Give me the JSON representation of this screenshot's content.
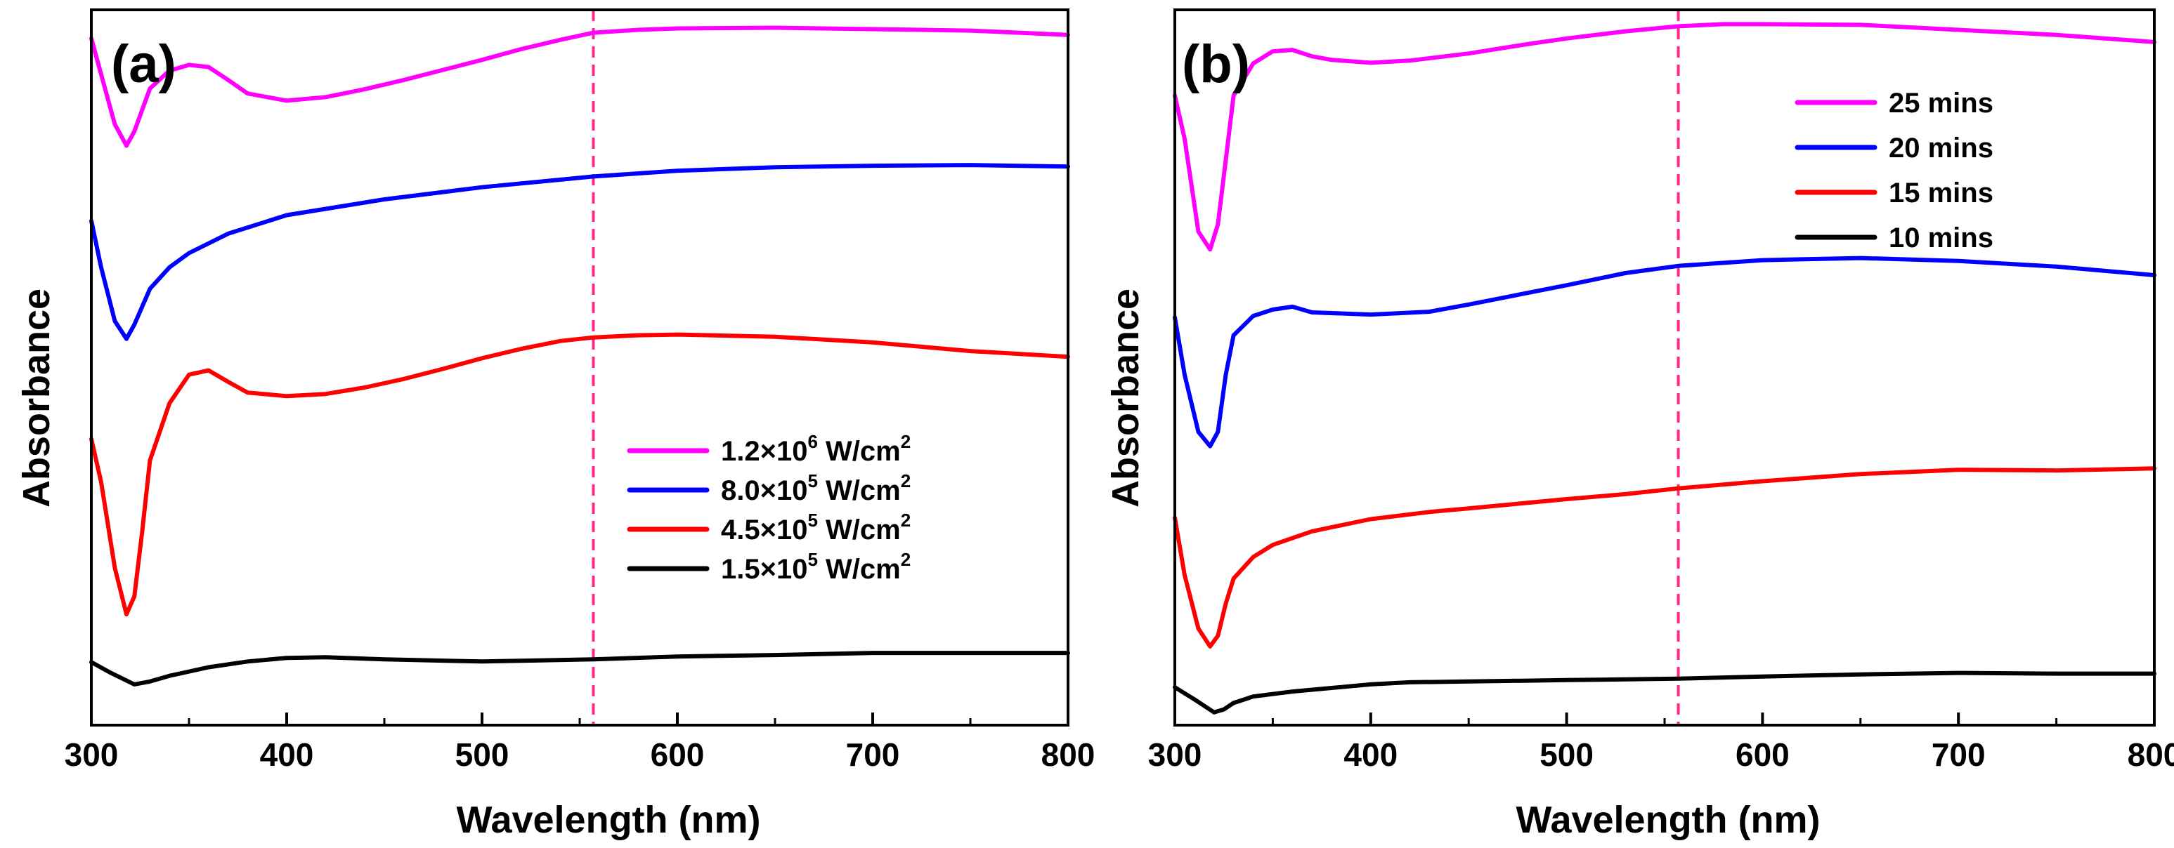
{
  "chart_data": [
    {
      "type": "line",
      "panel_label": "(a)",
      "xlabel": "Wavelength (nm)",
      "ylabel": "Absorbance",
      "xlim": [
        300,
        800
      ],
      "ylim": [
        0,
        100
      ],
      "y_ticks_shown": false,
      "x_ticks": [
        "300",
        "400",
        "500",
        "600",
        "700",
        "800"
      ],
      "reference_line": {
        "x": 557,
        "color": "#ff2a8a",
        "style": "dashed"
      },
      "legend_position": "lower-right",
      "series": [
        {
          "name": "1.2×10^6 W/cm^2",
          "legend_base": "1.2×10",
          "legend_exp": "6",
          "legend_unit": " W/cm",
          "legend_unit_exp": "2",
          "color": "#ff00ff",
          "x": [
            300,
            305,
            312,
            318,
            322,
            330,
            340,
            350,
            360,
            370,
            380,
            400,
            420,
            440,
            460,
            480,
            500,
            520,
            540,
            557,
            580,
            600,
            650,
            700,
            750,
            800
          ],
          "y": [
            96,
            91,
            84,
            81,
            83,
            89,
            91.5,
            92.3,
            92,
            90.2,
            88.3,
            87.3,
            87.8,
            88.9,
            90.2,
            91.6,
            93,
            94.5,
            95.8,
            96.8,
            97.2,
            97.4,
            97.5,
            97.3,
            97.1,
            96.5
          ]
        },
        {
          "name": "8.0×10^5 W/cm^2",
          "legend_base": "8.0×10",
          "legend_exp": "5",
          "legend_unit": " W/cm",
          "legend_unit_exp": "2",
          "color": "#0000ff",
          "x": [
            300,
            305,
            312,
            318,
            322,
            330,
            340,
            350,
            370,
            400,
            450,
            500,
            557,
            600,
            650,
            700,
            750,
            800
          ],
          "y": [
            70.5,
            64,
            56.5,
            54,
            56,
            61,
            64,
            66,
            68.7,
            71.3,
            73.5,
            75.2,
            76.7,
            77.5,
            78,
            78.2,
            78.3,
            78.1
          ]
        },
        {
          "name": "4.5×10^5 W/cm^2",
          "legend_base": "4.5×10",
          "legend_exp": "5",
          "legend_unit": " W/cm",
          "legend_unit_exp": "2",
          "color": "#ff0000",
          "x": [
            300,
            305,
            312,
            318,
            322,
            326,
            330,
            340,
            350,
            360,
            370,
            380,
            400,
            420,
            440,
            460,
            480,
            500,
            520,
            540,
            557,
            580,
            600,
            650,
            700,
            750,
            800
          ],
          "y": [
            40,
            34,
            22,
            15.5,
            18,
            27,
            37,
            45,
            49,
            49.6,
            48,
            46.5,
            46,
            46.3,
            47.2,
            48.4,
            49.8,
            51.3,
            52.6,
            53.7,
            54.2,
            54.5,
            54.6,
            54.3,
            53.5,
            52.3,
            51.5
          ]
        },
        {
          "name": "1.5×10^5 W/cm^2",
          "legend_base": "1.5×10",
          "legend_exp": "5",
          "legend_unit": " W/cm",
          "legend_unit_exp": "2",
          "color": "#000000",
          "x": [
            300,
            310,
            322,
            330,
            340,
            360,
            380,
            400,
            420,
            450,
            500,
            557,
            600,
            650,
            700,
            750,
            800
          ],
          "y": [
            8.8,
            7.3,
            5.7,
            6.1,
            6.9,
            8.1,
            8.9,
            9.4,
            9.5,
            9.2,
            8.9,
            9.2,
            9.6,
            9.8,
            10.1,
            10.1,
            10.1
          ]
        }
      ]
    },
    {
      "type": "line",
      "panel_label": "(b)",
      "xlabel": "Wavelength (nm)",
      "ylabel": "Absorbance",
      "xlim": [
        300,
        800
      ],
      "ylim": [
        0,
        100
      ],
      "y_ticks_shown": false,
      "x_ticks": [
        "300",
        "400",
        "500",
        "600",
        "700",
        "800"
      ],
      "reference_line": {
        "x": 557,
        "color": "#ff2a8a",
        "style": "dashed"
      },
      "legend_position": "top-right",
      "series": [
        {
          "name": "25 mins",
          "color": "#ff00ff",
          "x": [
            300,
            305,
            312,
            318,
            322,
            326,
            330,
            340,
            350,
            360,
            370,
            380,
            400,
            420,
            450,
            480,
            500,
            530,
            557,
            580,
            600,
            650,
            700,
            750,
            800
          ],
          "y": [
            88,
            82,
            69,
            66.5,
            70,
            79,
            88,
            92.5,
            94.2,
            94.4,
            93.5,
            93,
            92.6,
            92.9,
            93.9,
            95.2,
            96,
            97,
            97.7,
            98,
            98,
            97.9,
            97.2,
            96.5,
            95.5
          ]
        },
        {
          "name": "20 mins",
          "color": "#0000ff",
          "x": [
            300,
            305,
            312,
            318,
            322,
            326,
            330,
            340,
            350,
            360,
            370,
            400,
            430,
            450,
            500,
            530,
            557,
            600,
            650,
            700,
            750,
            800
          ],
          "y": [
            57,
            49,
            41,
            39,
            41,
            49,
            54.5,
            57.2,
            58.1,
            58.5,
            57.7,
            57.4,
            57.8,
            58.8,
            61.5,
            63.2,
            64.2,
            65,
            65.3,
            64.9,
            64.1,
            62.9
          ]
        },
        {
          "name": "15 mins",
          "color": "#ff0000",
          "x": [
            300,
            305,
            312,
            318,
            322,
            326,
            330,
            340,
            350,
            370,
            400,
            430,
            450,
            500,
            530,
            557,
            600,
            650,
            700,
            750,
            800
          ],
          "y": [
            29,
            21,
            13.5,
            11,
            12.5,
            17,
            20.5,
            23.5,
            25.2,
            27.1,
            28.8,
            29.8,
            30.3,
            31.6,
            32.3,
            33.1,
            34.1,
            35.1,
            35.7,
            35.6,
            35.9
          ]
        },
        {
          "name": "10 mins",
          "color": "#000000",
          "x": [
            300,
            310,
            320,
            325,
            330,
            340,
            360,
            380,
            400,
            420,
            450,
            500,
            557,
            600,
            650,
            700,
            750,
            800
          ],
          "y": [
            5.3,
            3.6,
            1.8,
            2.2,
            3.1,
            4,
            4.7,
            5.2,
            5.7,
            6,
            6.1,
            6.3,
            6.5,
            6.8,
            7.1,
            7.3,
            7.2,
            7.2
          ]
        }
      ]
    }
  ]
}
